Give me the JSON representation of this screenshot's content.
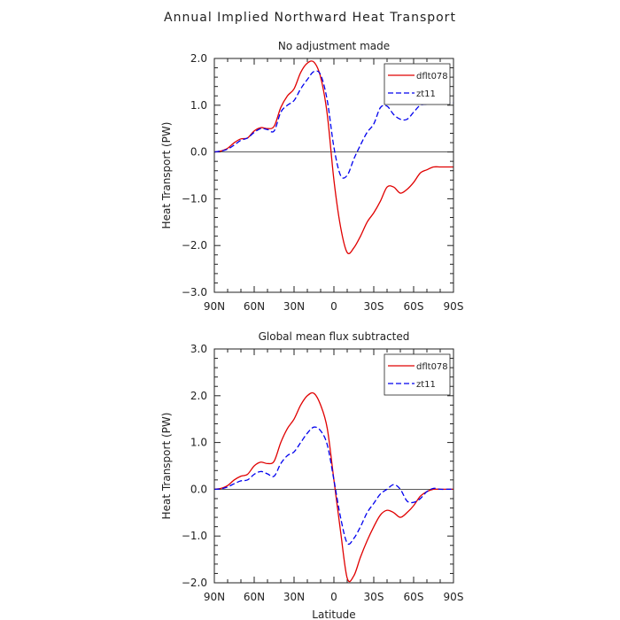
{
  "figure": {
    "title": "Annual Implied Northward Heat Transport"
  },
  "chart_data": [
    {
      "type": "line",
      "title": "No adjustment made",
      "xlabel": "",
      "ylabel": "Heat Transport (PW)",
      "x_ticks": [
        "90N",
        "60N",
        "30N",
        "0",
        "30S",
        "60S",
        "90S"
      ],
      "xlim": [
        90,
        -90
      ],
      "ylim": [
        -3.0,
        2.0
      ],
      "y_ticks": [
        "-3.0",
        "-2.0",
        "-1.0",
        "0.0",
        "1.0",
        "2.0"
      ],
      "y_tick_values": [
        -3,
        -2,
        -1,
        0,
        1,
        2
      ],
      "zero_line": true,
      "legend": "top-right",
      "x": [
        90,
        85,
        80,
        75,
        70,
        65,
        60,
        55,
        50,
        45,
        40,
        35,
        30,
        25,
        20,
        15,
        10,
        5,
        0,
        -5,
        -10,
        -15,
        -20,
        -25,
        -30,
        -35,
        -40,
        -45,
        -50,
        -55,
        -60,
        -65,
        -70,
        -75,
        -80,
        -85,
        -90
      ],
      "series": [
        {
          "name": "dflt078",
          "color": "#e00000",
          "dash": "solid",
          "values": [
            0.0,
            0.02,
            0.08,
            0.2,
            0.28,
            0.3,
            0.45,
            0.52,
            0.5,
            0.55,
            0.95,
            1.2,
            1.35,
            1.7,
            1.9,
            1.92,
            1.6,
            0.8,
            -0.6,
            -1.6,
            -2.15,
            -2.05,
            -1.8,
            -1.5,
            -1.3,
            -1.05,
            -0.75,
            -0.75,
            -0.88,
            -0.8,
            -0.65,
            -0.45,
            -0.38,
            -0.32,
            -0.32,
            -0.32,
            -0.32
          ]
        },
        {
          "name": "zt11",
          "color": "#0000ee",
          "dash": "dashed",
          "values": [
            0.0,
            0.02,
            0.06,
            0.15,
            0.25,
            0.3,
            0.42,
            0.5,
            0.48,
            0.45,
            0.85,
            1.0,
            1.1,
            1.35,
            1.55,
            1.72,
            1.65,
            1.1,
            0.1,
            -0.5,
            -0.5,
            -0.15,
            0.15,
            0.42,
            0.6,
            0.95,
            0.98,
            0.8,
            0.7,
            0.7,
            0.85,
            1.0,
            1.02,
            1.05,
            1.05,
            1.05,
            1.05
          ]
        }
      ]
    },
    {
      "type": "line",
      "title": "Global mean flux subtracted",
      "xlabel": "Latitude",
      "ylabel": "Heat Transport (PW)",
      "x_ticks": [
        "90N",
        "60N",
        "30N",
        "0",
        "30S",
        "60S",
        "90S"
      ],
      "xlim": [
        90,
        -90
      ],
      "ylim": [
        -2.0,
        3.0
      ],
      "y_ticks": [
        "-2.0",
        "-1.0",
        "0.0",
        "1.0",
        "2.0",
        "3.0"
      ],
      "y_tick_values": [
        -2,
        -1,
        0,
        1,
        2,
        3
      ],
      "zero_line": true,
      "legend": "top-right",
      "x": [
        90,
        85,
        80,
        75,
        70,
        65,
        60,
        55,
        50,
        45,
        40,
        35,
        30,
        25,
        20,
        15,
        10,
        5,
        0,
        -5,
        -10,
        -15,
        -20,
        -25,
        -30,
        -35,
        -40,
        -45,
        -50,
        -55,
        -60,
        -65,
        -70,
        -75,
        -80,
        -85,
        -90
      ],
      "series": [
        {
          "name": "dflt078",
          "color": "#e00000",
          "dash": "solid",
          "values": [
            0.0,
            0.02,
            0.08,
            0.2,
            0.28,
            0.32,
            0.5,
            0.58,
            0.55,
            0.6,
            1.0,
            1.3,
            1.5,
            1.8,
            2.0,
            2.05,
            1.8,
            1.3,
            0.2,
            -0.9,
            -1.9,
            -1.85,
            -1.45,
            -1.1,
            -0.8,
            -0.55,
            -0.45,
            -0.5,
            -0.6,
            -0.5,
            -0.35,
            -0.15,
            -0.05,
            0.0,
            0.0,
            0.0,
            0.0
          ]
        },
        {
          "name": "zt11",
          "color": "#0000ee",
          "dash": "dashed",
          "values": [
            0.0,
            0.01,
            0.05,
            0.12,
            0.18,
            0.2,
            0.32,
            0.38,
            0.33,
            0.28,
            0.55,
            0.72,
            0.8,
            1.0,
            1.2,
            1.33,
            1.25,
            0.95,
            0.2,
            -0.6,
            -1.15,
            -1.05,
            -0.8,
            -0.5,
            -0.3,
            -0.1,
            0.0,
            0.1,
            0.0,
            -0.25,
            -0.28,
            -0.2,
            -0.05,
            0.02,
            0.0,
            0.0,
            0.0
          ]
        }
      ]
    }
  ]
}
